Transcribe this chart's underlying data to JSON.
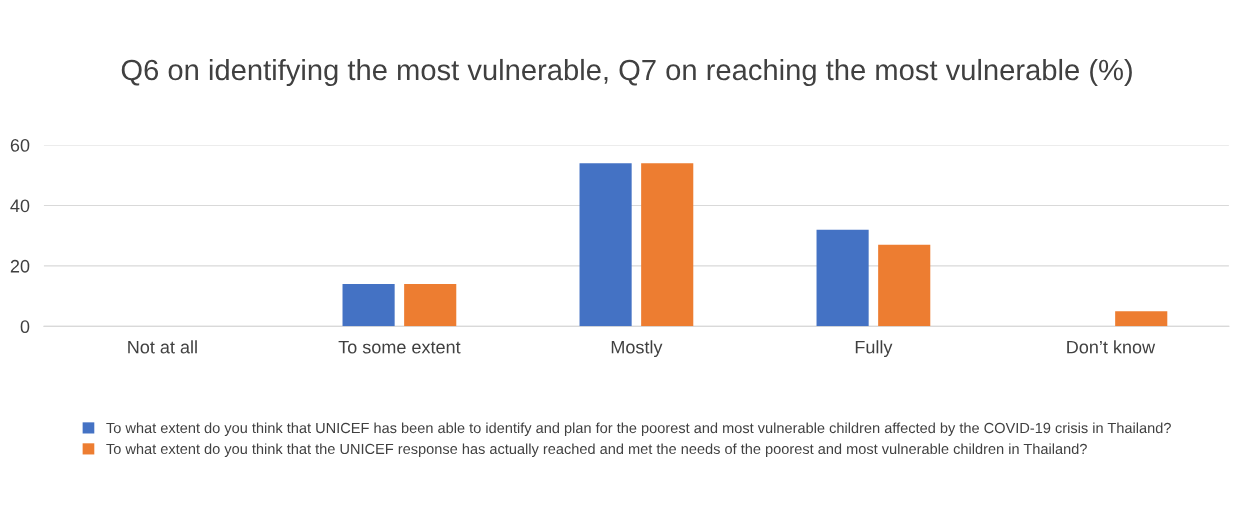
{
  "chart_data": {
    "type": "bar",
    "title": "Q6 on identifying the most vulnerable, Q7 on reaching the most vulnerable (%)",
    "categories": [
      "Not at all",
      "To some extent",
      "Mostly",
      "Fully",
      "Don’t know"
    ],
    "series": [
      {
        "name": "To what extent do you think that UNICEF has been able to identify and plan for the poorest and most vulnerable children affected by the COVID-19 crisis in Thailand?",
        "color": "#4472c4",
        "values": [
          0,
          14,
          54,
          32,
          0
        ]
      },
      {
        "name": "To what extent do you think that the UNICEF response has actually reached and met the needs of the poorest and most vulnerable children in Thailand?",
        "color": "#ed7d31",
        "values": [
          0,
          14,
          54,
          27,
          5
        ]
      }
    ],
    "ylim": [
      0,
      60
    ],
    "yticks": [
      0,
      20,
      40,
      60
    ],
    "grid": "y",
    "legend": "bottom"
  }
}
